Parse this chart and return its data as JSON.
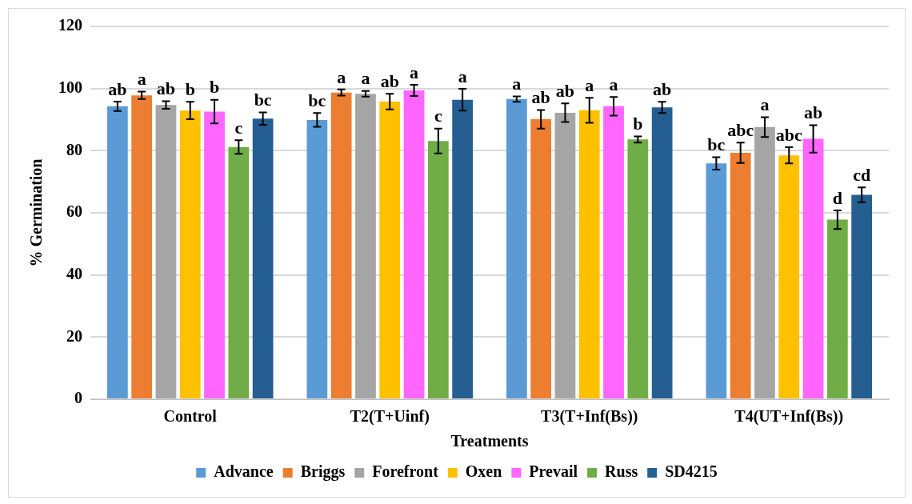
{
  "chart_data": {
    "type": "bar",
    "xlabel": "Treatments",
    "ylabel": "% Germination",
    "categories": [
      "Control",
      "T2(T+Uinf)",
      "T3(T+Inf(Bs))",
      "T4(UT+Inf(Bs))"
    ],
    "ylim": [
      0,
      120
    ],
    "yticks": [
      0,
      20,
      40,
      60,
      80,
      100,
      120
    ],
    "grid": "y",
    "legend": "bottom",
    "series": [
      {
        "name": "Advance",
        "color": "#5b9bd5",
        "values": [
          94.3,
          89.9,
          96.6,
          75.9
        ],
        "errors": [
          1.5,
          2.2,
          0.9,
          2.0
        ],
        "value_labels": [
          "ab",
          "bc",
          "a",
          "bc"
        ]
      },
      {
        "name": "Briggs",
        "color": "#ed7d31",
        "values": [
          97.8,
          98.7,
          90.1,
          79.3
        ],
        "errors": [
          1.2,
          1.0,
          3.0,
          3.3
        ],
        "value_labels": [
          "a",
          "a",
          "ab",
          "abc"
        ]
      },
      {
        "name": "Forefront",
        "color": "#a5a5a5",
        "values": [
          94.7,
          98.3,
          92.2,
          87.6
        ],
        "errors": [
          1.2,
          0.9,
          3.0,
          3.2
        ],
        "value_labels": [
          "ab",
          "a",
          "ab",
          "a"
        ]
      },
      {
        "name": "Oxen",
        "color": "#ffc000",
        "values": [
          92.9,
          95.8,
          93.0,
          78.5
        ],
        "errors": [
          2.8,
          2.5,
          4.0,
          2.6
        ],
        "value_labels": [
          "b",
          "ab",
          "a",
          "abc"
        ]
      },
      {
        "name": "Prevail",
        "color": "#ff66ff",
        "values": [
          92.6,
          99.4,
          94.3,
          83.8
        ],
        "errors": [
          3.8,
          1.8,
          3.0,
          4.4
        ],
        "value_labels": [
          "b",
          "a",
          "a",
          "ab"
        ]
      },
      {
        "name": "Russ",
        "color": "#70ad47",
        "values": [
          81.2,
          83.1,
          83.6,
          57.8
        ],
        "errors": [
          2.2,
          4.0,
          1.0,
          3.0
        ],
        "value_labels": [
          "c",
          "c",
          "b",
          "d"
        ]
      },
      {
        "name": "SD4215",
        "color": "#255e91",
        "values": [
          90.3,
          96.4,
          93.9,
          65.8
        ],
        "errors": [
          2.0,
          3.5,
          1.8,
          2.4
        ],
        "value_labels": [
          "bc",
          "a",
          "ab",
          "cd"
        ]
      }
    ]
  }
}
